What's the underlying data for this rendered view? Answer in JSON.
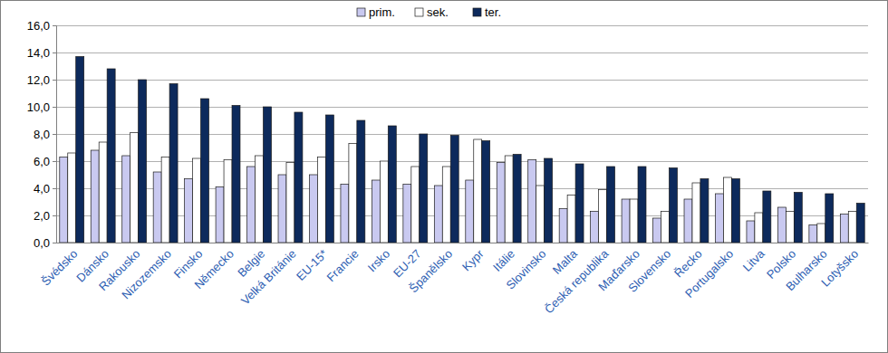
{
  "chart_data": {
    "type": "bar",
    "categories": [
      "Švédsko",
      "Dánsko",
      "Rakousko",
      "Nizozemsko",
      "Finsko",
      "Německo",
      "Belgie",
      "Velká Británie",
      "EU-15*",
      "Francie",
      "Irsko",
      "EU-27",
      "Španělsko",
      "Kypr",
      "Itálie",
      "Slovinsko",
      "Malta",
      "Česká republika",
      "Maďarsko",
      "Slovensko",
      "Řecko",
      "Portugalsko",
      "Litva",
      "Polsko",
      "Bulharsko",
      "Lotyšsko"
    ],
    "series": [
      {
        "name": "prim.",
        "color": "#c9c9f0",
        "values": [
          6.3,
          6.8,
          6.4,
          5.2,
          4.7,
          4.1,
          5.6,
          5.0,
          5.0,
          4.3,
          4.6,
          4.3,
          4.2,
          4.6,
          5.9,
          6.1,
          2.5,
          2.3,
          3.2,
          1.8,
          3.2,
          3.6,
          1.6,
          2.6,
          1.3,
          2.1
        ]
      },
      {
        "name": "sek.",
        "color": "#ffffff",
        "values": [
          6.6,
          7.4,
          8.1,
          6.3,
          6.2,
          6.1,
          6.4,
          5.9,
          6.3,
          7.3,
          6.0,
          5.6,
          5.6,
          7.6,
          6.4,
          4.2,
          3.5,
          3.9,
          3.2,
          2.3,
          4.4,
          4.8,
          2.2,
          2.3,
          1.4,
          2.3
        ]
      },
      {
        "name": "ter.",
        "color": "#0d2a5c",
        "values": [
          13.7,
          12.8,
          12.0,
          11.7,
          10.6,
          10.1,
          10.0,
          9.6,
          9.4,
          9.0,
          8.6,
          8.0,
          7.9,
          7.5,
          6.5,
          6.2,
          5.8,
          5.6,
          5.6,
          5.5,
          4.7,
          4.7,
          3.8,
          3.7,
          3.6,
          2.9
        ]
      }
    ],
    "ylim": [
      0,
      16
    ],
    "yticks": [
      {
        "value": 0,
        "label": "0,0"
      },
      {
        "value": 2,
        "label": "2,0"
      },
      {
        "value": 4,
        "label": "4,0"
      },
      {
        "value": 6,
        "label": "6,0"
      },
      {
        "value": 8,
        "label": "8,0"
      },
      {
        "value": 10,
        "label": "10,0"
      },
      {
        "value": 12,
        "label": "12,0"
      },
      {
        "value": 14,
        "label": "14,0"
      },
      {
        "value": 16,
        "label": "16,0"
      }
    ],
    "grid": true,
    "legend": "top"
  }
}
